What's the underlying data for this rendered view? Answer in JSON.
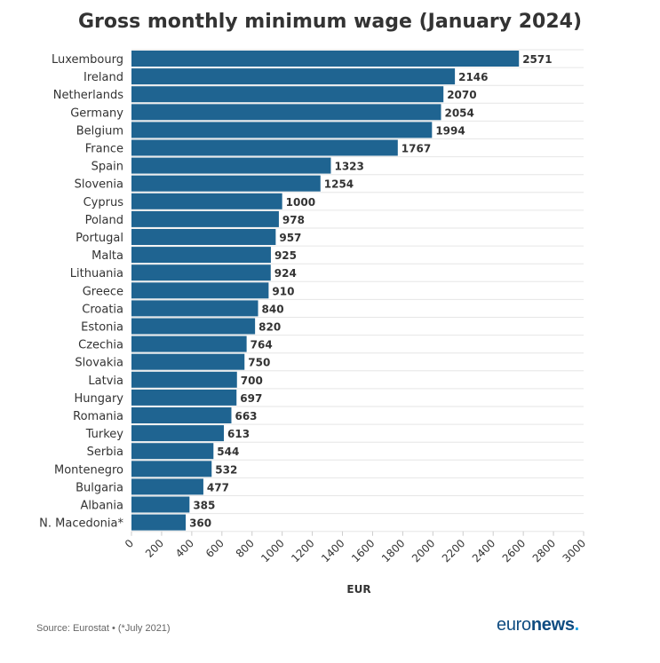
{
  "title": "Gross monthly minimum wage (January 2024)",
  "source": "Source: Eurostat • (*July 2021)",
  "logo": {
    "part1": "euro",
    "part2": "news",
    "dot": "."
  },
  "colors": {
    "bar": "#1f6491",
    "grid": "#e6e6e6",
    "text": "#333333"
  },
  "chart_data": {
    "type": "bar",
    "orientation": "horizontal",
    "categories": [
      "Luxembourg",
      "Ireland",
      "Netherlands",
      "Germany",
      "Belgium",
      "France",
      "Spain",
      "Slovenia",
      "Cyprus",
      "Poland",
      "Portugal",
      "Malta",
      "Lithuania",
      "Greece",
      "Croatia",
      "Estonia",
      "Czechia",
      "Slovakia",
      "Latvia",
      "Hungary",
      "Romania",
      "Turkey",
      "Serbia",
      "Montenegro",
      "Bulgaria",
      "Albania",
      "N. Macedonia*"
    ],
    "values": [
      2571,
      2146,
      2070,
      2054,
      1994,
      1767,
      1323,
      1254,
      1000,
      978,
      957,
      925,
      924,
      910,
      840,
      820,
      764,
      750,
      700,
      697,
      663,
      613,
      544,
      532,
      477,
      385,
      360
    ],
    "xlabel": "EUR",
    "xlim": [
      0,
      3000
    ],
    "xticks": [
      0,
      200,
      400,
      600,
      800,
      1000,
      1200,
      1400,
      1600,
      1800,
      2000,
      2200,
      2400,
      2600,
      2800,
      3000
    ],
    "grid": true,
    "data_labels": true
  }
}
